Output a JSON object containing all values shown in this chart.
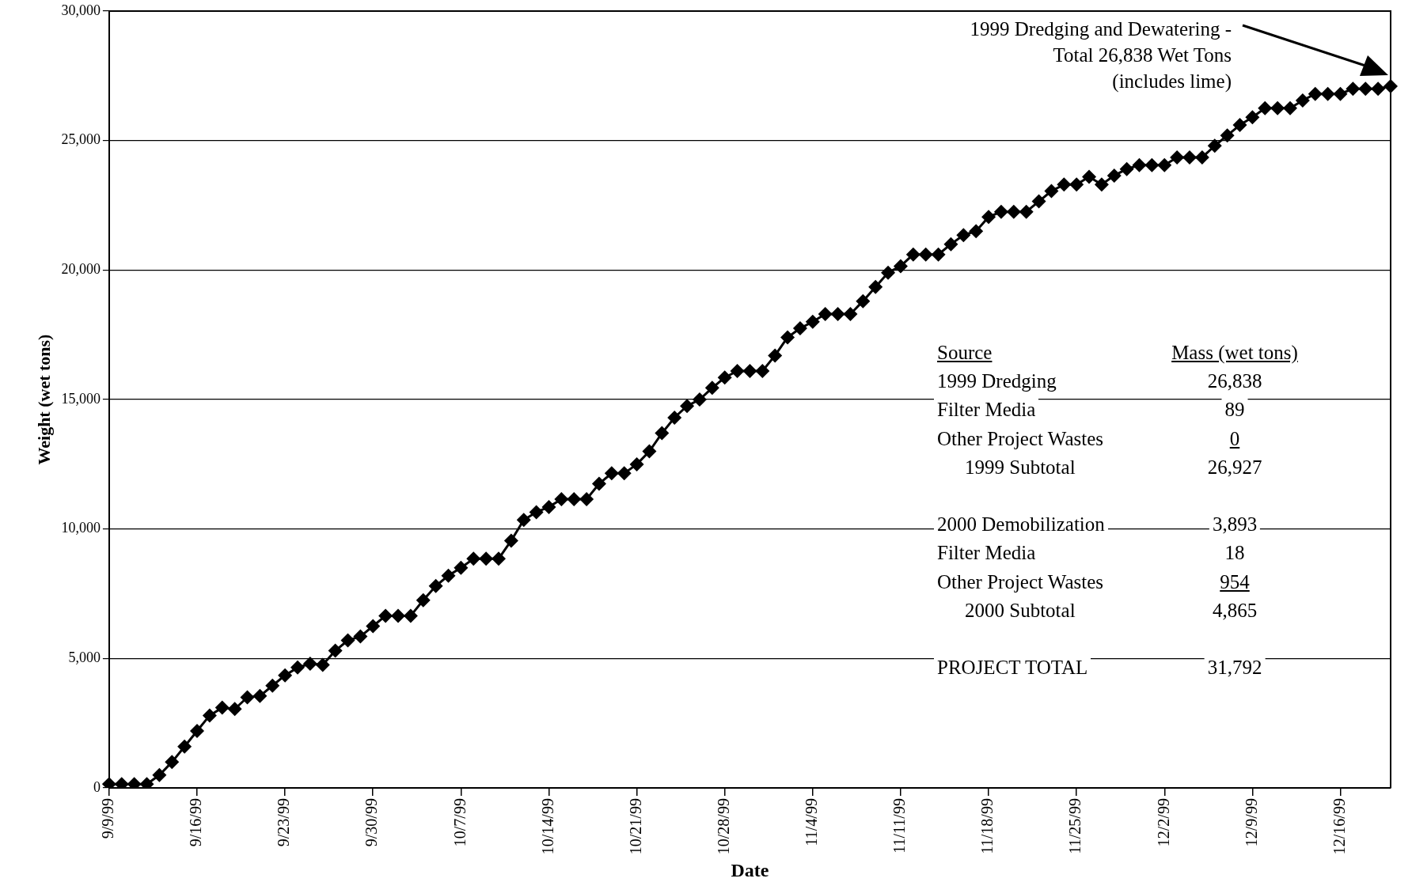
{
  "chart_data": {
    "type": "line",
    "xlabel": "Date",
    "ylabel": "Weight (wet tons)",
    "categories": [
      "9/9/99",
      null,
      null,
      null,
      null,
      null,
      null,
      "9/16/99",
      null,
      null,
      null,
      null,
      null,
      null,
      "9/23/99",
      null,
      null,
      null,
      null,
      null,
      null,
      "9/30/99",
      null,
      null,
      null,
      null,
      null,
      null,
      "10/7/99",
      null,
      null,
      null,
      null,
      null,
      null,
      "10/14/99",
      null,
      null,
      null,
      null,
      null,
      null,
      "10/21/99",
      null,
      null,
      null,
      null,
      null,
      null,
      "10/28/99",
      null,
      null,
      null,
      null,
      null,
      null,
      "11/4/99",
      null,
      null,
      null,
      null,
      null,
      null,
      "11/11/99",
      null,
      null,
      null,
      null,
      null,
      null,
      "11/18/99",
      null,
      null,
      null,
      null,
      null,
      null,
      "11/25/99",
      null,
      null,
      null,
      null,
      null,
      null,
      "12/2/99",
      null,
      null,
      null,
      null,
      null,
      null,
      "12/9/99",
      null,
      null,
      null,
      null,
      null,
      null,
      "12/16/99",
      null,
      null,
      null,
      null
    ],
    "series": [
      {
        "color": "#000000",
        "values": [
          150,
          150,
          150,
          150,
          500,
          1000,
          1600,
          2200,
          2800,
          3100,
          3050,
          3500,
          3550,
          3950,
          4350,
          4650,
          4800,
          4750,
          5300,
          5700,
          5850,
          6250,
          6650,
          6650,
          6650,
          7250,
          7800,
          8200,
          8500,
          8850,
          8850,
          8850,
          9550,
          10350,
          10650,
          10850,
          11150,
          11150,
          11150,
          11750,
          12150,
          12150,
          12500,
          13000,
          13700,
          14300,
          14750,
          15000,
          15450,
          15850,
          16100,
          16100,
          16100,
          16700,
          17400,
          17750,
          18000,
          18300,
          18300,
          18300,
          18800,
          19350,
          19900,
          20150,
          20600,
          20600,
          20600,
          21000,
          21350,
          21500,
          22050,
          22250,
          22250,
          22250,
          22650,
          23050,
          23300,
          23300,
          23600,
          23300,
          23650,
          23900,
          24050,
          24050,
          24050,
          24350,
          24350,
          24350,
          24800,
          25200,
          25600,
          25900,
          26250,
          26250,
          26250,
          26550,
          26800,
          26800,
          26800,
          27000,
          27000,
          27000,
          27100
        ]
      }
    ],
    "ylim": [
      0,
      30000
    ],
    "yticks": [
      0,
      {
        "value": 5000,
        "label": "5,000"
      },
      {
        "value": 10000,
        "label": "10,000"
      },
      {
        "value": 15000,
        "label": "15,000"
      },
      {
        "value": 20000,
        "label": "20,000"
      },
      {
        "value": 25000,
        "label": "25,000"
      },
      {
        "value": 30000,
        "label": "30,000"
      }
    ],
    "grid": "y",
    "marker": "diamond",
    "line_style": "solid",
    "annotations": [
      "1999 Dredging and Dewatering -\nTotal 26,838 Wet Tons\n(includes lime)",
      "Source",
      "Mass (wet tons)",
      "1999 Dredging",
      "26,838",
      "Filter Media",
      "89",
      "Other Project Wastes",
      "0",
      "1999 Subtotal",
      "26,927",
      "2000 Demobilization",
      "3,893",
      "Filter Media",
      "18",
      "Other Project Wastes",
      "954",
      "2000 Subtotal",
      "4,865",
      "PROJECT TOTAL",
      "31,792"
    ]
  }
}
